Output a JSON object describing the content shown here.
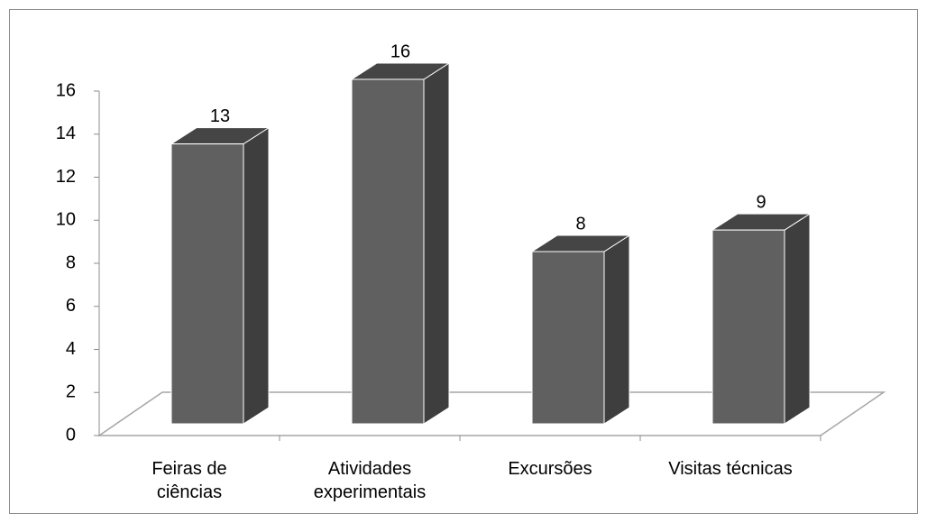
{
  "chart_data": {
    "type": "bar3d",
    "categories": [
      "Feiras de\nciências",
      "Atividades\nexperimentais",
      "Excursões",
      "Visitas técnicas"
    ],
    "values": [
      13,
      16,
      8,
      9
    ],
    "color": "#606060",
    "ylim": [
      0,
      16
    ],
    "yticks": [
      0,
      2,
      4,
      6,
      8,
      10,
      12,
      14,
      16
    ]
  }
}
